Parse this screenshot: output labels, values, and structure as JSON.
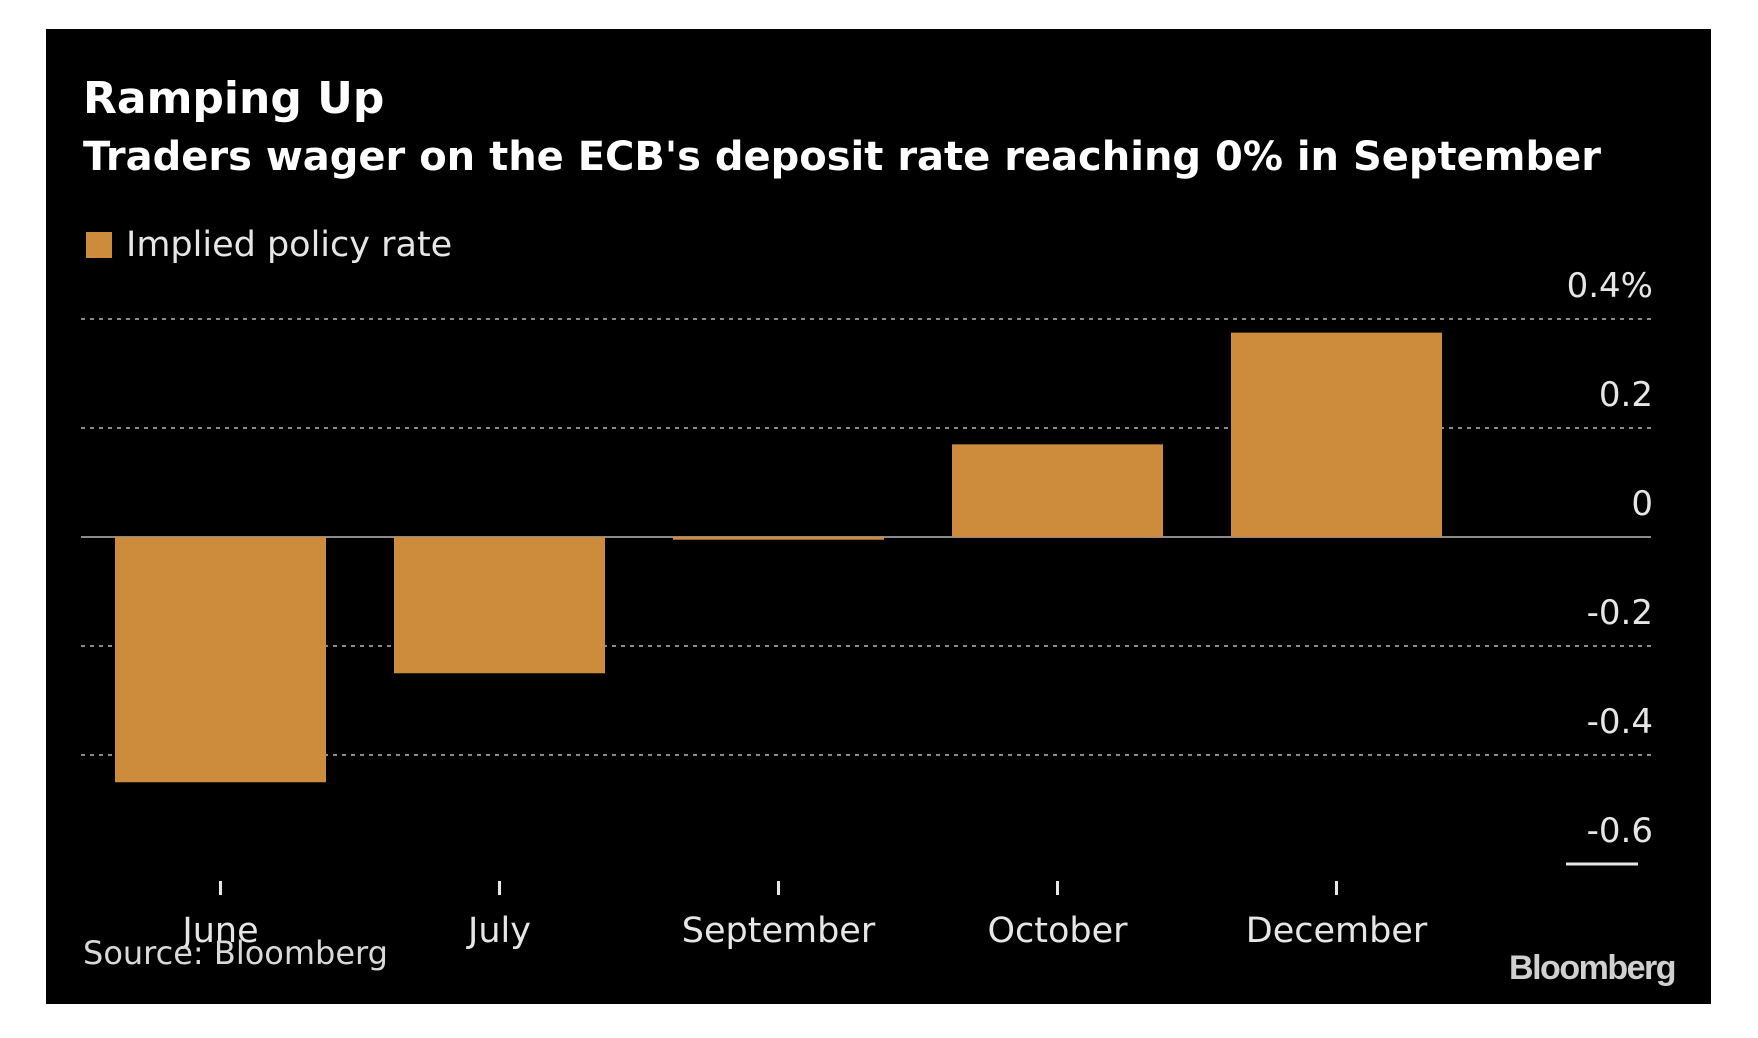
{
  "header": {
    "title": "Ramping Up",
    "subtitle": "Traders wager on the ECB's deposit rate reaching 0% in September"
  },
  "legend": {
    "label": "Implied policy rate"
  },
  "footer": {
    "source": "Source: Bloomberg",
    "logo": "Bloomberg"
  },
  "colors": {
    "background": "#000000",
    "bar": "#cd8c3c",
    "text": "#e6e6e6",
    "grid": "#8a8a8a"
  },
  "chart_data": {
    "type": "bar",
    "title": "Ramping Up",
    "subtitle": "Traders wager on the ECB's deposit rate reaching 0% in September",
    "categories": [
      "June",
      "July",
      "September",
      "October",
      "December"
    ],
    "series": [
      {
        "name": "Implied policy rate",
        "values": [
          -0.45,
          -0.25,
          -0.005,
          0.17,
          0.375
        ]
      }
    ],
    "ylim": [
      -0.6,
      0.4
    ],
    "yticks": [
      0.4,
      0.2,
      0,
      -0.2,
      -0.4,
      -0.6
    ],
    "ytick_labels": [
      "0.4%",
      "0.2",
      "0",
      "-0.2",
      "-0.4",
      "-0.6"
    ],
    "y_axis_side": "right",
    "grid": true,
    "legend_position": "top-left",
    "xlabel": "",
    "ylabel": ""
  }
}
